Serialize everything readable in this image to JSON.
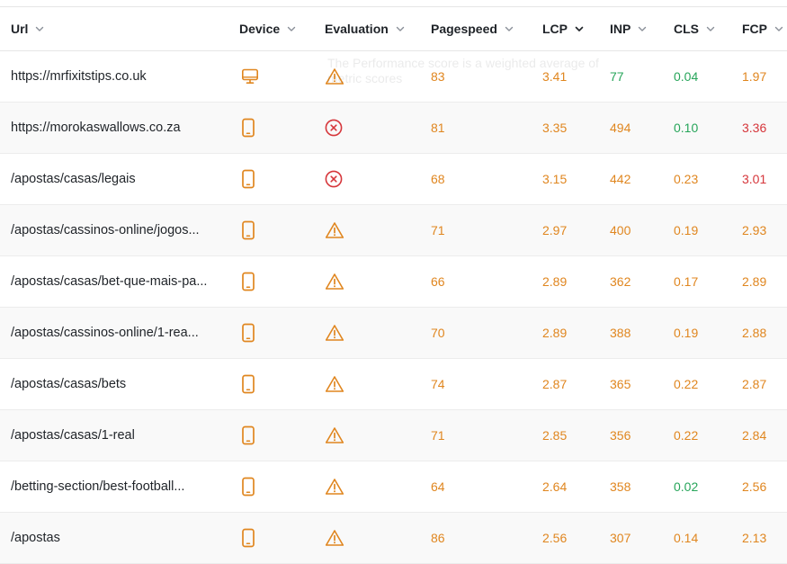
{
  "colors": {
    "orange": "#e0861f",
    "green": "#27a55a",
    "red": "#d6363b",
    "text": "#1f2328",
    "header_chevron": "#8a8f98"
  },
  "header": {
    "columns": [
      {
        "key": "url",
        "label": "Url"
      },
      {
        "key": "device",
        "label": "Device"
      },
      {
        "key": "evaluation",
        "label": "Evaluation"
      },
      {
        "key": "pagespeed",
        "label": "Pagespeed"
      },
      {
        "key": "lcp",
        "label": "LCP",
        "sort_active": true
      },
      {
        "key": "inp",
        "label": "INP"
      },
      {
        "key": "cls",
        "label": "CLS"
      },
      {
        "key": "fcp",
        "label": "FCP"
      }
    ]
  },
  "tooltip": {
    "text": "The Performance score is a weighted average of metric scores"
  },
  "rows": [
    {
      "url": "https://mrfixitstips.co.uk",
      "device": "desktop-icon",
      "evaluation": "warning-icon",
      "pagespeed": "83",
      "lcp": "3.41",
      "inp": "77",
      "cls": "0.04",
      "fcp": "1.97",
      "colors": {
        "lcp": "orange",
        "inp": "green",
        "cls": "green",
        "fcp": "orange"
      }
    },
    {
      "url": "https://morokaswallows.co.za",
      "device": "mobile-icon",
      "evaluation": "error-icon",
      "pagespeed": "81",
      "lcp": "3.35",
      "inp": "494",
      "cls": "0.10",
      "fcp": "3.36",
      "colors": {
        "lcp": "orange",
        "inp": "orange",
        "cls": "green",
        "fcp": "red"
      }
    },
    {
      "url": "/apostas/casas/legais",
      "device": "mobile-icon",
      "evaluation": "error-icon",
      "pagespeed": "68",
      "lcp": "3.15",
      "inp": "442",
      "cls": "0.23",
      "fcp": "3.01",
      "colors": {
        "lcp": "orange",
        "inp": "orange",
        "cls": "orange",
        "fcp": "red"
      }
    },
    {
      "url": "/apostas/cassinos-online/jogos...",
      "device": "mobile-icon",
      "evaluation": "warning-icon",
      "pagespeed": "71",
      "lcp": "2.97",
      "inp": "400",
      "cls": "0.19",
      "fcp": "2.93",
      "colors": {
        "lcp": "orange",
        "inp": "orange",
        "cls": "orange",
        "fcp": "orange"
      }
    },
    {
      "url": "/apostas/casas/bet-que-mais-pa...",
      "device": "mobile-icon",
      "evaluation": "warning-icon",
      "pagespeed": "66",
      "lcp": "2.89",
      "inp": "362",
      "cls": "0.17",
      "fcp": "2.89",
      "colors": {
        "lcp": "orange",
        "inp": "orange",
        "cls": "orange",
        "fcp": "orange"
      }
    },
    {
      "url": "/apostas/cassinos-online/1-rea...",
      "device": "mobile-icon",
      "evaluation": "warning-icon",
      "pagespeed": "70",
      "lcp": "2.89",
      "inp": "388",
      "cls": "0.19",
      "fcp": "2.88",
      "colors": {
        "lcp": "orange",
        "inp": "orange",
        "cls": "orange",
        "fcp": "orange"
      }
    },
    {
      "url": "/apostas/casas/bets",
      "device": "mobile-icon",
      "evaluation": "warning-icon",
      "pagespeed": "74",
      "lcp": "2.87",
      "inp": "365",
      "cls": "0.22",
      "fcp": "2.87",
      "colors": {
        "lcp": "orange",
        "inp": "orange",
        "cls": "orange",
        "fcp": "orange"
      }
    },
    {
      "url": "/apostas/casas/1-real",
      "device": "mobile-icon",
      "evaluation": "warning-icon",
      "pagespeed": "71",
      "lcp": "2.85",
      "inp": "356",
      "cls": "0.22",
      "fcp": "2.84",
      "colors": {
        "lcp": "orange",
        "inp": "orange",
        "cls": "orange",
        "fcp": "orange"
      }
    },
    {
      "url": "/betting-section/best-football...",
      "device": "mobile-icon",
      "evaluation": "warning-icon",
      "pagespeed": "64",
      "lcp": "2.64",
      "inp": "358",
      "cls": "0.02",
      "fcp": "2.56",
      "colors": {
        "lcp": "orange",
        "inp": "orange",
        "cls": "green",
        "fcp": "orange"
      }
    },
    {
      "url": "/apostas",
      "device": "mobile-icon",
      "evaluation": "warning-icon",
      "pagespeed": "86",
      "lcp": "2.56",
      "inp": "307",
      "cls": "0.14",
      "fcp": "2.13",
      "colors": {
        "lcp": "orange",
        "inp": "orange",
        "cls": "orange",
        "fcp": "orange"
      }
    }
  ]
}
